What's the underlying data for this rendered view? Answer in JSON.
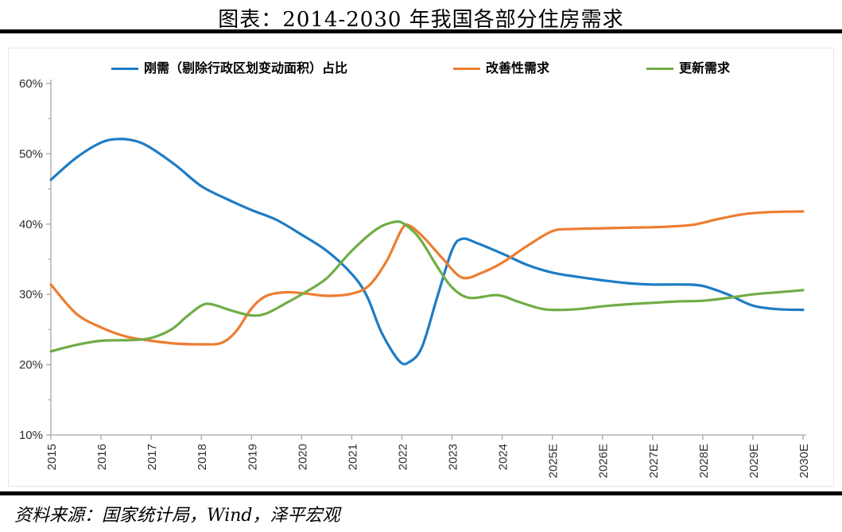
{
  "page": {
    "title": "图表：2014-2030 年我国各部分住房需求",
    "source_note": "资料来源：国家统计局，Wind，泽平宏观"
  },
  "chart_data": {
    "type": "line",
    "title": "图表：2014-2030 年我国各部分住房需求",
    "grid": false,
    "legend_position": "top",
    "axis_color": "#a6a6a6",
    "tick_label_color": "#303030",
    "ylim": [
      10,
      60
    ],
    "y_tick_step_major": 10,
    "y_tick_step_minor": 5,
    "y_tick_labels": [
      "10%",
      "20%",
      "30%",
      "40%",
      "50%",
      "60%"
    ],
    "x_range": [
      2015,
      2030
    ],
    "x_tick_labels": [
      "2015",
      "2016",
      "2017",
      "2018",
      "2019",
      "2020",
      "2021",
      "2022",
      "2023",
      "2024",
      "2025E",
      "2026E",
      "2027E",
      "2028E",
      "2029E",
      "2030E"
    ],
    "series": [
      {
        "name": "刚需（剔除行政区划变动面积）占比",
        "color": "#1f7cc4",
        "unit": "%",
        "points": [
          [
            2015,
            46.3
          ],
          [
            2015.5,
            49.4
          ],
          [
            2016,
            51.6
          ],
          [
            2016.35,
            52.1
          ],
          [
            2016.7,
            51.8
          ],
          [
            2017,
            50.8
          ],
          [
            2017.5,
            48.3
          ],
          [
            2018,
            45.4
          ],
          [
            2018.5,
            43.6
          ],
          [
            2019,
            42.0
          ],
          [
            2019.5,
            40.6
          ],
          [
            2020,
            38.5
          ],
          [
            2020.5,
            36.2
          ],
          [
            2021,
            32.9
          ],
          [
            2021.3,
            29.8
          ],
          [
            2021.6,
            24.5
          ],
          [
            2021.95,
            20.5
          ],
          [
            2022.15,
            20.4
          ],
          [
            2022.4,
            22.5
          ],
          [
            2022.7,
            29.5
          ],
          [
            2023,
            36.3
          ],
          [
            2023.2,
            37.9
          ],
          [
            2023.5,
            37.3
          ],
          [
            2024,
            35.8
          ],
          [
            2024.5,
            34.2
          ],
          [
            2025,
            33.1
          ],
          [
            2025.5,
            32.5
          ],
          [
            2026,
            32.0
          ],
          [
            2026.5,
            31.6
          ],
          [
            2027,
            31.4
          ],
          [
            2027.6,
            31.4
          ],
          [
            2028,
            31.2
          ],
          [
            2028.5,
            30.0
          ],
          [
            2029,
            28.4
          ],
          [
            2029.5,
            27.9
          ],
          [
            2030,
            27.8
          ]
        ]
      },
      {
        "name": "改善性需求",
        "color": "#ed7d31",
        "unit": "%",
        "points": [
          [
            2015,
            31.4
          ],
          [
            2015.5,
            27.3
          ],
          [
            2016,
            25.3
          ],
          [
            2016.5,
            24.0
          ],
          [
            2017,
            23.4
          ],
          [
            2017.5,
            23.0
          ],
          [
            2018,
            22.9
          ],
          [
            2018.4,
            23.1
          ],
          [
            2018.7,
            24.8
          ],
          [
            2019,
            28.0
          ],
          [
            2019.3,
            29.8
          ],
          [
            2019.7,
            30.3
          ],
          [
            2020.1,
            30.1
          ],
          [
            2020.5,
            29.8
          ],
          [
            2021,
            30.1
          ],
          [
            2021.35,
            31.3
          ],
          [
            2021.7,
            34.8
          ],
          [
            2022,
            39.3
          ],
          [
            2022.15,
            39.8
          ],
          [
            2022.45,
            38.0
          ],
          [
            2022.8,
            35.2
          ],
          [
            2023.2,
            32.4
          ],
          [
            2023.6,
            33.1
          ],
          [
            2024,
            34.5
          ],
          [
            2024.5,
            36.9
          ],
          [
            2025,
            39.0
          ],
          [
            2025.4,
            39.3
          ],
          [
            2026,
            39.4
          ],
          [
            2026.6,
            39.5
          ],
          [
            2027.2,
            39.6
          ],
          [
            2027.8,
            39.9
          ],
          [
            2028.3,
            40.7
          ],
          [
            2028.8,
            41.4
          ],
          [
            2029.3,
            41.7
          ],
          [
            2030,
            41.8
          ]
        ]
      },
      {
        "name": "更新需求",
        "color": "#70ad47",
        "unit": "%",
        "points": [
          [
            2015,
            21.9
          ],
          [
            2015.5,
            22.8
          ],
          [
            2016,
            23.4
          ],
          [
            2016.6,
            23.5
          ],
          [
            2017,
            23.8
          ],
          [
            2017.4,
            25.0
          ],
          [
            2017.7,
            26.8
          ],
          [
            2018,
            28.4
          ],
          [
            2018.2,
            28.6
          ],
          [
            2018.6,
            27.7
          ],
          [
            2019,
            27.0
          ],
          [
            2019.3,
            27.3
          ],
          [
            2019.7,
            28.8
          ],
          [
            2020,
            30.0
          ],
          [
            2020.5,
            32.3
          ],
          [
            2021,
            36.2
          ],
          [
            2021.5,
            39.3
          ],
          [
            2021.85,
            40.3
          ],
          [
            2022.05,
            40.0
          ],
          [
            2022.35,
            38.0
          ],
          [
            2022.7,
            34.0
          ],
          [
            2023,
            31.0
          ],
          [
            2023.35,
            29.5
          ],
          [
            2023.9,
            29.9
          ],
          [
            2024.3,
            29.0
          ],
          [
            2024.7,
            28.1
          ],
          [
            2025,
            27.8
          ],
          [
            2025.5,
            27.9
          ],
          [
            2026,
            28.3
          ],
          [
            2026.5,
            28.6
          ],
          [
            2027,
            28.8
          ],
          [
            2027.5,
            29.0
          ],
          [
            2028,
            29.1
          ],
          [
            2028.5,
            29.5
          ],
          [
            2029,
            30.0
          ],
          [
            2029.5,
            30.3
          ],
          [
            2030,
            30.6
          ]
        ]
      }
    ]
  }
}
